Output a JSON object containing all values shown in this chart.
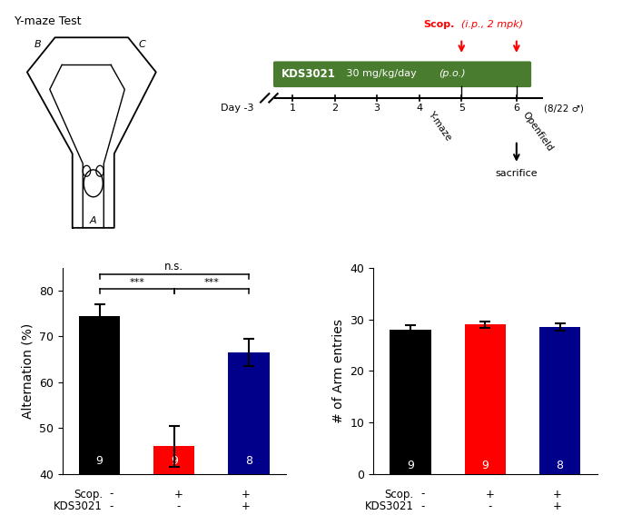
{
  "alt_values": [
    74.5,
    46.0,
    66.5
  ],
  "alt_errors": [
    2.5,
    4.5,
    3.0
  ],
  "alt_colors": [
    "#000000",
    "#ff0000",
    "#00008B"
  ],
  "alt_ns": [
    "9",
    "9",
    "8"
  ],
  "alt_ylim": [
    40,
    85
  ],
  "alt_yticks": [
    40,
    50,
    60,
    70,
    80
  ],
  "alt_ylabel": "Alternation (%)",
  "arm_values": [
    28.0,
    29.0,
    28.5
  ],
  "arm_errors": [
    0.8,
    0.6,
    0.7
  ],
  "arm_colors": [
    "#000000",
    "#ff0000",
    "#00008B"
  ],
  "arm_ns": [
    "9",
    "9",
    "8"
  ],
  "arm_ylim": [
    0,
    40
  ],
  "arm_yticks": [
    0,
    10,
    20,
    30,
    40
  ],
  "arm_ylabel": "# of Arm entries",
  "scop_labels": [
    "-",
    "+",
    "+"
  ],
  "kds_labels": [
    "-",
    "-",
    "+"
  ],
  "bar_width": 0.55,
  "bar_positions": [
    1,
    2,
    3
  ],
  "timeline_green": "#4a7c2f",
  "scop_color": "#ff0000",
  "ymaze_title": "Y-maze Test",
  "background_color": "#ffffff"
}
